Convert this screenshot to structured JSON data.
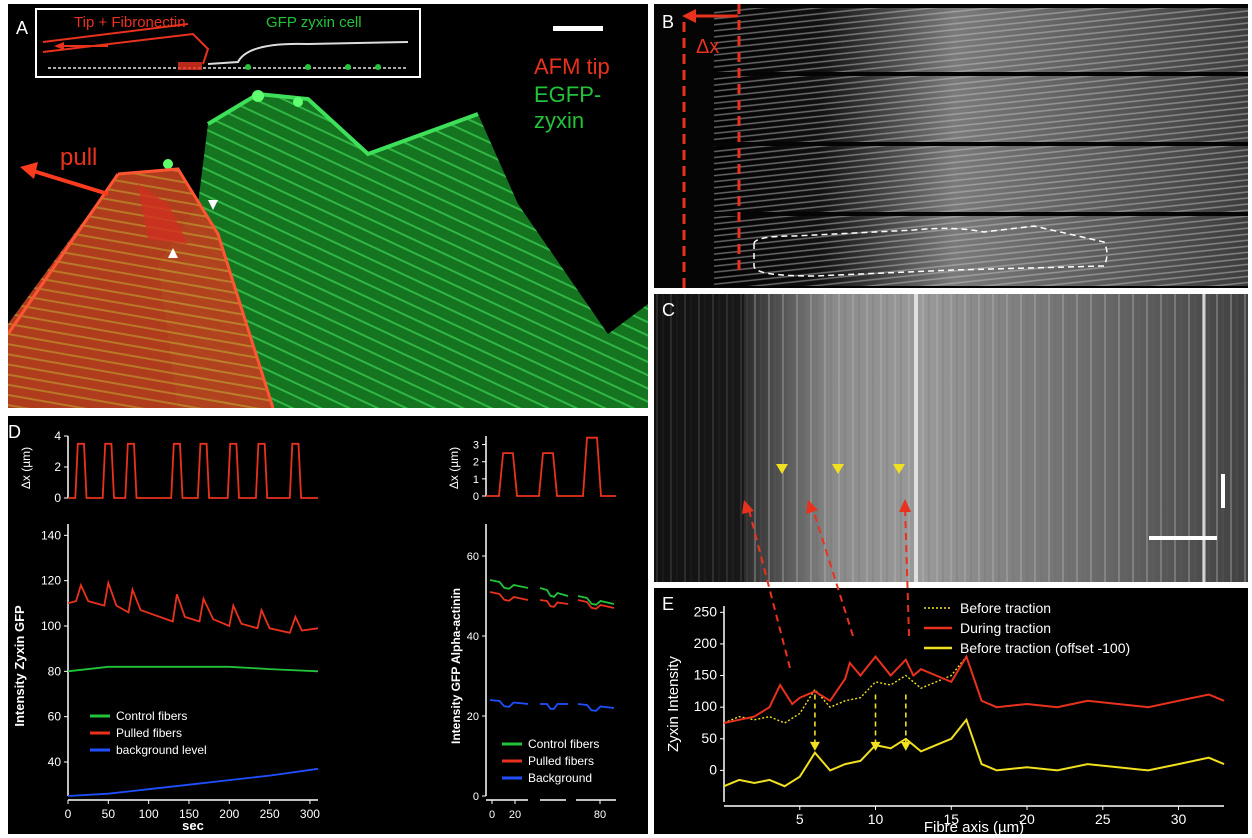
{
  "panels": {
    "a": {
      "label": "A",
      "inset_tip": "Tip + Fibronectin",
      "inset_cell": "GFP zyxin cell",
      "legend_tip": "AFM tip",
      "legend_zyxin": "EGFP-zyxin",
      "pull": "pull"
    },
    "b": {
      "label": "B",
      "dx": "Δx"
    },
    "c": {
      "label": "C"
    },
    "d": {
      "label": "D"
    },
    "e": {
      "label": "E"
    }
  },
  "colors": {
    "red": "#e8321e",
    "green": "#22c33a",
    "blue": "#1f4fff",
    "yellow": "#f0e020",
    "white": "#ffffff"
  },
  "chart_data": [
    {
      "id": "d-left-top",
      "type": "line",
      "ylabel": "Δx (µm)",
      "ylim": [
        0,
        4
      ],
      "yticks": [
        "0",
        "2",
        "4"
      ],
      "xlim": [
        0,
        310
      ],
      "series": [
        {
          "color": "#e8321e",
          "pulses_center_sec": [
            16,
            50,
            78,
            135,
            168,
            205,
            240,
            282
          ],
          "peak": 3.5
        }
      ]
    },
    {
      "id": "d-left-main",
      "type": "line",
      "xlabel": "sec",
      "ylabel": "Intensity Zyxin GFP",
      "xlim": [
        0,
        310
      ],
      "ylim": [
        25,
        145
      ],
      "xticks": [
        "0",
        "50",
        "100",
        "150",
        "200",
        "250",
        "300"
      ],
      "yticks": [
        "40",
        "60",
        "80",
        "100",
        "120",
        "140"
      ],
      "series": [
        {
          "name": "Control fibers",
          "color": "#22c33a",
          "x": [
            0,
            50,
            100,
            150,
            200,
            250,
            310
          ],
          "y": [
            80,
            82,
            82,
            82,
            82,
            81,
            80
          ]
        },
        {
          "name": "Pulled fibers",
          "color": "#e8321e",
          "x": [
            0,
            10,
            16,
            25,
            45,
            50,
            60,
            75,
            80,
            90,
            130,
            135,
            145,
            163,
            168,
            180,
            200,
            205,
            215,
            235,
            240,
            250,
            275,
            282,
            290,
            310
          ],
          "y": [
            110,
            111,
            118,
            111,
            109,
            119,
            109,
            106,
            116,
            107,
            102,
            114,
            104,
            102,
            112,
            103,
            100,
            109,
            101,
            99,
            107,
            99,
            97,
            104,
            98,
            99
          ]
        },
        {
          "name": "background level",
          "color": "#1f4fff",
          "x": [
            0,
            50,
            100,
            150,
            200,
            250,
            310
          ],
          "y": [
            25,
            26,
            28,
            30,
            32,
            34,
            37
          ]
        }
      ],
      "legend": "bottom-left"
    },
    {
      "id": "d-right-top",
      "type": "line",
      "ylabel": "Δx (µm)",
      "ylim": [
        0,
        3.5
      ],
      "yticks": [
        "0",
        "1",
        "2",
        "3"
      ],
      "series": [
        {
          "color": "#e8321e",
          "peaks": [
            2.5,
            2.5,
            3.4
          ]
        }
      ]
    },
    {
      "id": "d-right-main",
      "type": "line",
      "ylabel": "Intensity  GFP Alpha-actinin",
      "ylim": [
        0,
        68
      ],
      "yticks": [
        "0",
        "20",
        "40",
        "60"
      ],
      "xticks": [
        "0",
        "20",
        "80"
      ],
      "series": [
        {
          "name": "Control fibers",
          "color": "#22c33a",
          "y_segments": [
            [
              54,
              52
            ],
            [
              52,
              50
            ],
            [
              50,
              48
            ]
          ]
        },
        {
          "name": "Pulled fibers",
          "color": "#e8321e",
          "y_segments": [
            [
              51,
              49
            ],
            [
              49,
              48
            ],
            [
              49,
              47
            ]
          ]
        },
        {
          "name": "Background",
          "color": "#1f4fff",
          "y_segments": [
            [
              24,
              23
            ],
            [
              23,
              23
            ],
            [
              23,
              22
            ]
          ]
        }
      ],
      "legend": "bottom-right"
    },
    {
      "id": "e",
      "type": "line",
      "xlabel": "Fibre axis (µm)",
      "ylabel": "Zyxin Intensity",
      "xlim": [
        0,
        33
      ],
      "ylim": [
        -50,
        260
      ],
      "xticks": [
        "5",
        "10",
        "15",
        "20",
        "25",
        "30"
      ],
      "yticks": [
        "0",
        "50",
        "100",
        "150",
        "200",
        "250"
      ],
      "series": [
        {
          "name": "Before traction",
          "color": "#f0e020",
          "dash": true,
          "x": [
            0,
            1,
            2,
            3,
            4,
            5,
            6,
            7,
            8,
            9,
            10,
            11,
            12,
            13,
            14,
            15,
            16,
            17,
            18,
            20,
            22,
            24,
            26,
            28,
            30,
            32,
            33
          ],
          "y": [
            75,
            85,
            80,
            85,
            75,
            90,
            128,
            100,
            110,
            115,
            140,
            135,
            150,
            130,
            140,
            150,
            180,
            110,
            100,
            105,
            100,
            110,
            105,
            100,
            110,
            120,
            110
          ]
        },
        {
          "name": "During traction",
          "color": "#e8321e",
          "x": [
            0,
            1,
            2,
            3,
            3.7,
            4.5,
            5,
            6,
            7,
            8,
            8.3,
            9,
            10,
            11,
            12,
            12.5,
            13,
            14,
            15,
            16,
            17,
            18,
            20,
            22,
            24,
            26,
            28,
            30,
            32,
            33
          ],
          "y": [
            75,
            80,
            85,
            100,
            135,
            105,
            115,
            125,
            110,
            145,
            170,
            150,
            180,
            150,
            175,
            150,
            160,
            150,
            140,
            180,
            110,
            100,
            105,
            100,
            110,
            105,
            100,
            110,
            120,
            110
          ]
        },
        {
          "name": "Before traction (offset -100)",
          "color": "#f0e020",
          "x": [
            0,
            1,
            2,
            3,
            4,
            5,
            6,
            7,
            8,
            9,
            10,
            11,
            12,
            13,
            14,
            15,
            16,
            17,
            18,
            20,
            22,
            24,
            26,
            28,
            30,
            32,
            33
          ],
          "y": [
            -25,
            -15,
            -20,
            -15,
            -25,
            -10,
            28,
            0,
            10,
            15,
            40,
            35,
            50,
            30,
            40,
            50,
            80,
            10,
            0,
            5,
            0,
            10,
            5,
            0,
            10,
            20,
            10
          ]
        }
      ],
      "legend": "top-right"
    }
  ]
}
